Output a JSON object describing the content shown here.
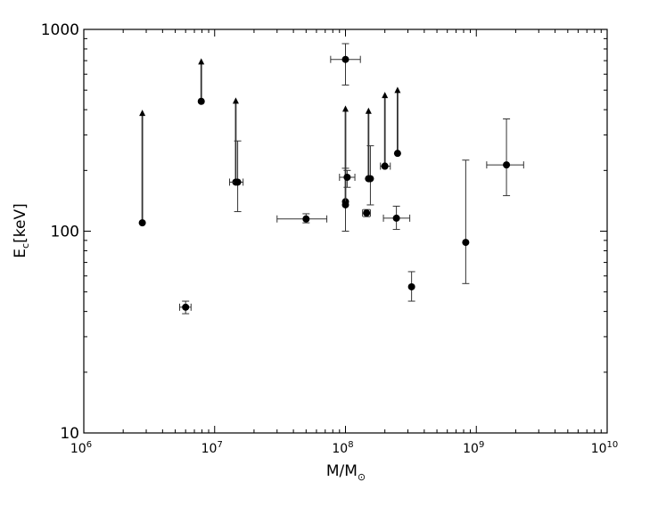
{
  "chart_data": {
    "type": "scatter",
    "xscale": "log",
    "yscale": "log",
    "xlim": [
      1000000.0,
      10000000000.0
    ],
    "ylim": [
      10,
      1000
    ],
    "xlabel": "M/M",
    "xlabel_sub": "⊙",
    "ylabel": "E",
    "ylabel_sub": "c",
    "ylabel_suffix": "[keV]",
    "x_ticks": [
      {
        "base": "10",
        "exp": "6",
        "value": 1000000.0
      },
      {
        "base": "10",
        "exp": "7",
        "value": 10000000.0
      },
      {
        "base": "10",
        "exp": "8",
        "value": 100000000.0
      },
      {
        "base": "10",
        "exp": "9",
        "value": 1000000000.0
      },
      {
        "base": "10",
        "exp": "10",
        "value": 10000000000.0
      }
    ],
    "y_ticks": [
      {
        "label": "10",
        "value": 10
      },
      {
        "label": "100",
        "value": 100
      },
      {
        "label": "1000",
        "value": 1000
      }
    ],
    "grid": false,
    "marker_color": "#000000",
    "points": [
      {
        "x": 2800000.0,
        "y": 110,
        "lower_limit_to": 400
      },
      {
        "x": 6000000.0,
        "y": 42,
        "x_err": [
          5400000.0,
          6600000.0
        ],
        "y_err": [
          39,
          45
        ]
      },
      {
        "x": 7900000.0,
        "y": 440,
        "lower_limit_to": 720
      },
      {
        "x": 14500000.0,
        "y": 175,
        "lower_limit_to": 460
      },
      {
        "x": 15000000.0,
        "y": 175,
        "x_err": [
          13000000.0,
          16500000.0
        ],
        "y_err": [
          125,
          280
        ]
      },
      {
        "x": 50000000.0,
        "y": 115,
        "x_err": [
          30000000.0,
          72000000.0
        ],
        "y_err": [
          110,
          122
        ]
      },
      {
        "x": 100000000.0,
        "y": 710,
        "x_err": [
          77000000.0,
          130000000.0
        ],
        "y_err": [
          530,
          850
        ]
      },
      {
        "x": 100000000.0,
        "y": 140,
        "lower_limit_to": 420
      },
      {
        "x": 100000000.0,
        "y": 135,
        "y_err": [
          100,
          205
        ]
      },
      {
        "x": 103000000.0,
        "y": 185,
        "x_err": [
          90000000.0,
          118000000.0
        ],
        "y_err": [
          165,
          200
        ]
      },
      {
        "x": 145000000.0,
        "y": 123,
        "x_err": [
          135000000.0,
          155000000.0
        ],
        "y_err": [
          118,
          128
        ]
      },
      {
        "x": 150000000.0,
        "y": 182,
        "lower_limit_to": 410
      },
      {
        "x": 155000000.0,
        "y": 182,
        "y_err": [
          135,
          265
        ]
      },
      {
        "x": 200000000.0,
        "y": 210,
        "lower_limit_to": 490
      },
      {
        "x": 200000000.0,
        "y": 210,
        "x_err": [
          185000000.0,
          220000000.0
        ]
      },
      {
        "x": 250000000.0,
        "y": 243,
        "lower_limit_to": 520
      },
      {
        "x": 245000000.0,
        "y": 116,
        "x_err": [
          195000000.0,
          310000000.0
        ],
        "y_err": [
          102,
          133
        ]
      },
      {
        "x": 320000000.0,
        "y": 53,
        "y_err": [
          45,
          63
        ]
      },
      {
        "x": 830000000.0,
        "y": 88,
        "y_err": [
          55,
          225
        ]
      },
      {
        "x": 1700000000.0,
        "y": 213,
        "x_err": [
          1200000000.0,
          2300000000.0
        ],
        "y_err": [
          150,
          360
        ]
      }
    ]
  }
}
